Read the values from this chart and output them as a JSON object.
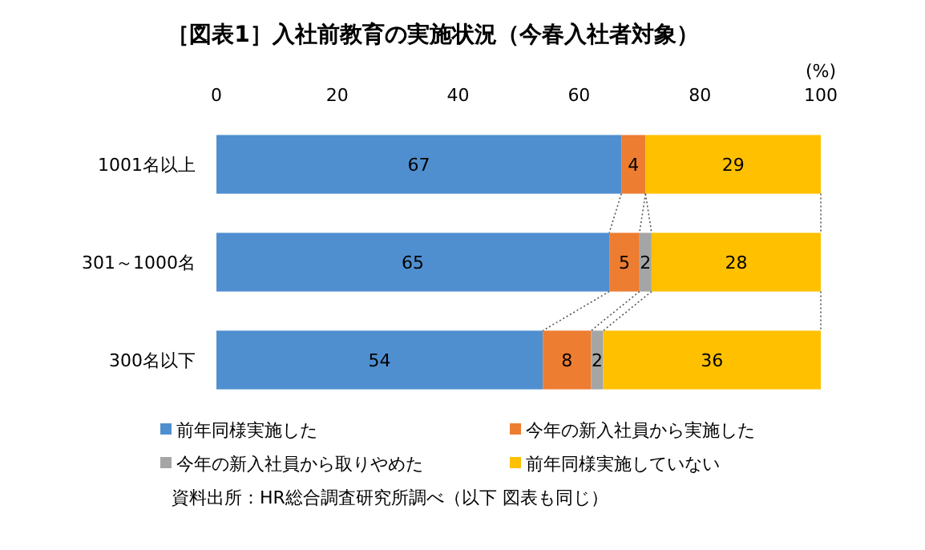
{
  "chart_data": {
    "type": "bar",
    "orientation": "horizontal",
    "stacked": true,
    "title": "［図表1］入社前教育の実施状況（今春入社者対象）",
    "xlabel": "(%)",
    "categories": [
      "1001名以上",
      "301～1000名",
      "300名以下"
    ],
    "series": [
      {
        "name": "前年同様実施した",
        "color": "#4f8fd0",
        "values": [
          67,
          65,
          54
        ]
      },
      {
        "name": "今年の新入社員から実施した",
        "color": "#ed7d31",
        "values": [
          4,
          5,
          8
        ]
      },
      {
        "name": "今年の新入社員から取りやめた",
        "color": "#a5a5a5",
        "values": [
          null,
          2,
          2
        ]
      },
      {
        "name": "前年同様実施していない",
        "color": "#ffc000",
        "values": [
          29,
          28,
          36
        ]
      }
    ],
    "xlim": [
      0,
      100
    ],
    "xticks": [
      0,
      20,
      40,
      60,
      80,
      100
    ],
    "data_labels": true,
    "legend": "bottom",
    "annotations": [
      "資料出所：HR総合調査研究所調べ（以下 図表も同じ）"
    ]
  }
}
